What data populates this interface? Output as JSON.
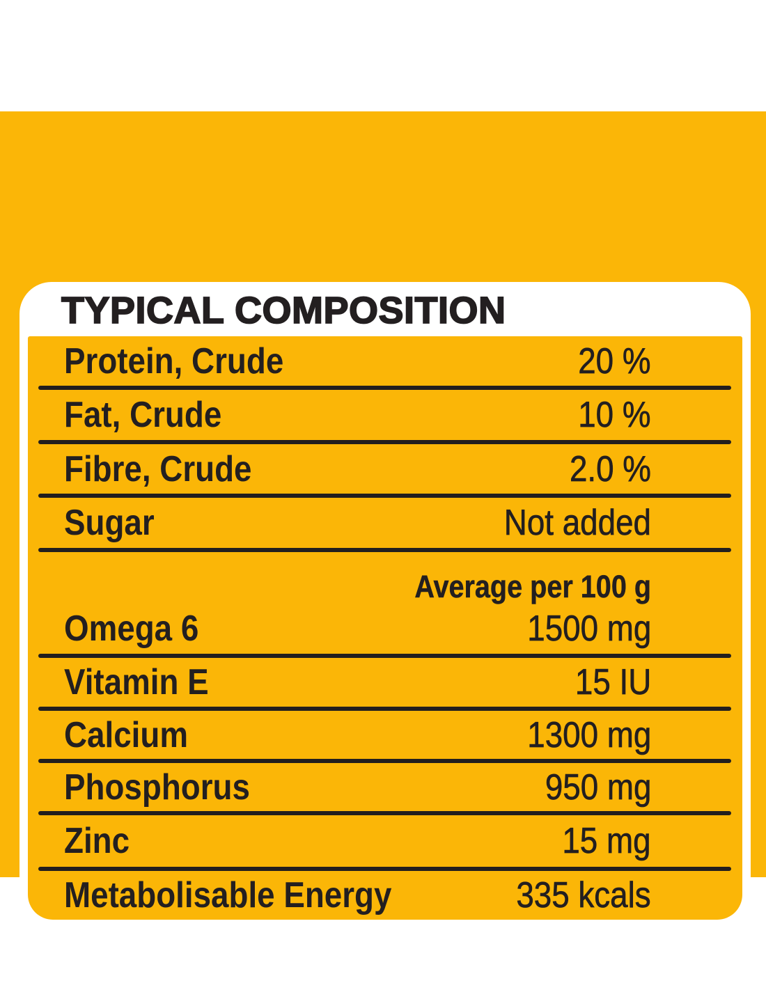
{
  "header": {
    "title": "TYPICAL COMPOSITION"
  },
  "table": {
    "rows": [
      {
        "label": "Protein, Crude",
        "value": "20 %"
      },
      {
        "label": "Fat, Crude",
        "value": "10 %"
      },
      {
        "label": "Fibre, Crude",
        "value": "2.0 %"
      },
      {
        "label": "Sugar",
        "value": "Not added"
      }
    ],
    "section_header": "Average per 100 g",
    "rows2": [
      {
        "label": "Omega 6",
        "value": "1500 mg"
      },
      {
        "label": "Vitamin E",
        "value": "15 IU"
      },
      {
        "label": "Calcium",
        "value": "1300 mg"
      },
      {
        "label": "Phosphorus",
        "value": "950 mg"
      },
      {
        "label": "Zinc",
        "value": "15 mg"
      },
      {
        "label": "Metabolisable Energy",
        "value": "335 kcals"
      }
    ]
  },
  "colors": {
    "background_yellow": "#FBB607",
    "panel_white": "#FFFFFF",
    "text_black": "#231F20",
    "divider_black": "#221E1E"
  }
}
